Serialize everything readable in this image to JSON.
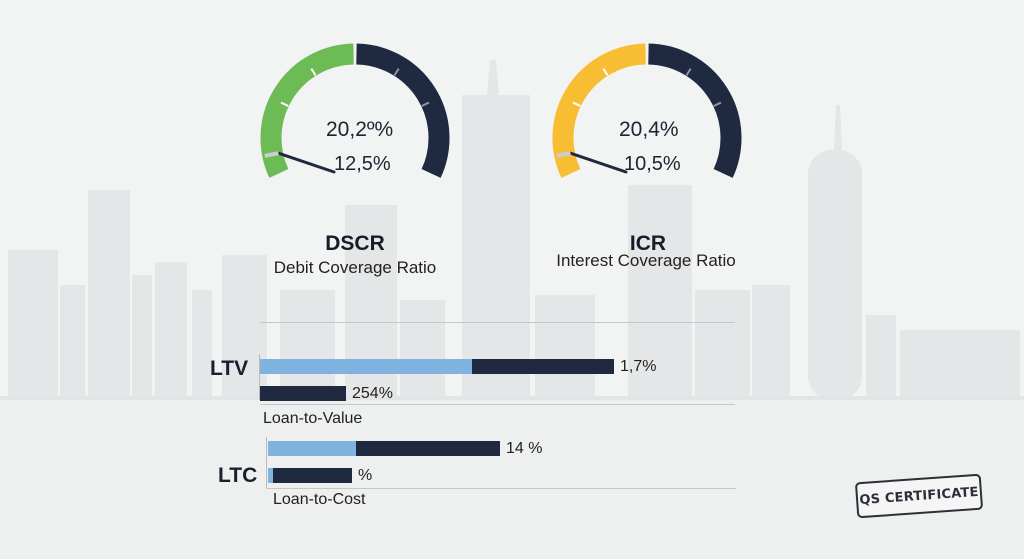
{
  "chart_data": [
    {
      "type": "gauge",
      "title": "DSCR",
      "subtitle": "Debit Coverage Ratio",
      "value_main": "20,2º%",
      "value_secondary": "12,5%",
      "fill_fraction": 0.5,
      "needle_fraction": 0.06,
      "colors": {
        "fill": "#6dbb55",
        "remaining": "#1f2a40",
        "needle": "#1f2a40"
      }
    },
    {
      "type": "gauge",
      "title": "ICR",
      "subtitle": "Interest Coverage Ratio",
      "value_main": "20,4%",
      "value_secondary": "10,5%",
      "fill_fraction": 0.5,
      "needle_fraction": 0.06,
      "colors": {
        "fill": "#f7be34",
        "remaining": "#1f2a40",
        "needle": "#1f2a40"
      }
    },
    {
      "type": "bar",
      "title": "LTV",
      "subtitle": "Loan-to-Value",
      "bars": [
        {
          "label": "1,7%",
          "light_fraction": 0.6,
          "dark_fraction": 0.4
        },
        {
          "label": "254%",
          "light_fraction": 0.0,
          "dark_fraction": 1.0
        }
      ]
    },
    {
      "type": "bar",
      "title": "LTC",
      "subtitle": "Loan-to-Cost",
      "bars": [
        {
          "label": "14 %",
          "light_fraction": 0.38,
          "dark_fraction": 0.62
        },
        {
          "label": "%",
          "light_fraction": 0.06,
          "dark_fraction": 0.94
        }
      ]
    }
  ],
  "badge": "QS CERTIFICATE",
  "colors": {
    "light_bar": "#7fb3e0",
    "dark_bar": "#1f2a40",
    "background": "#f1f2f2"
  }
}
